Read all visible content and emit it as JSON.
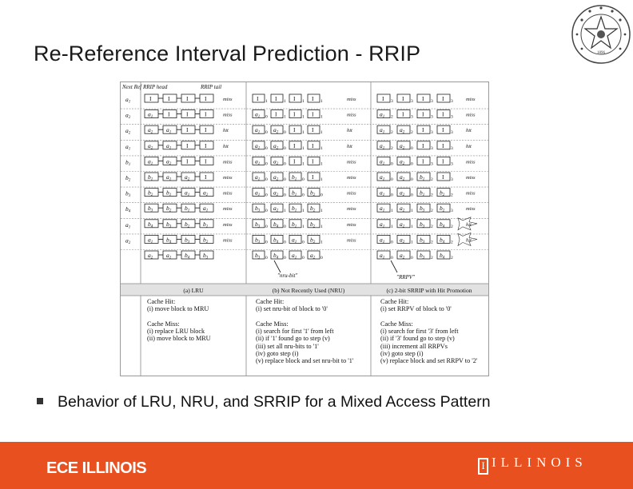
{
  "slide": {
    "title": "Re-Reference Interval Prediction - RRIP",
    "bullet": "Behavior of LRU, NRU, and SRRIP for a Mixed Access Pattern"
  },
  "footer": {
    "left": "ECE ILLINOIS",
    "right": "ILLINOIS",
    "color": "#e8501f"
  },
  "seal": {
    "icon": "university-seal-icon",
    "text": "1896"
  },
  "figure": {
    "header": {
      "next_ref": "Next Ref",
      "rrip_head": "RRIP head",
      "rrip_tail": "RRIP tail"
    },
    "next_refs": [
      "a1",
      "a2",
      "a2",
      "a1",
      "b1",
      "b2",
      "b3",
      "b4",
      "a1",
      "a2",
      ""
    ],
    "lru": {
      "rows": [
        {
          "blocks": [
            "I",
            "I",
            "I",
            "I"
          ],
          "result": "miss"
        },
        {
          "blocks": [
            "a1",
            "I",
            "I",
            "I"
          ],
          "result": "miss"
        },
        {
          "blocks": [
            "a2",
            "a1",
            "I",
            "I"
          ],
          "result": "hit"
        },
        {
          "blocks": [
            "a2",
            "a1",
            "I",
            "I"
          ],
          "result": "hit"
        },
        {
          "blocks": [
            "a1",
            "a2",
            "I",
            "I"
          ],
          "result": "miss"
        },
        {
          "blocks": [
            "b1",
            "a1",
            "a2",
            "I"
          ],
          "result": "miss"
        },
        {
          "blocks": [
            "b2",
            "b1",
            "a1",
            "a2"
          ],
          "result": "miss"
        },
        {
          "blocks": [
            "b3",
            "b2",
            "b1",
            "a1"
          ],
          "result": "miss"
        },
        {
          "blocks": [
            "b4",
            "b3",
            "b2",
            "b1"
          ],
          "result": "miss"
        },
        {
          "blocks": [
            "a1",
            "b4",
            "b3",
            "b2"
          ],
          "result": "miss"
        },
        {
          "blocks": [
            "a2",
            "a1",
            "b4",
            "b3"
          ],
          "result": ""
        }
      ],
      "caption": "(a) LRU"
    },
    "nru": {
      "rows": [
        {
          "blocks": [
            "I",
            "I",
            "I",
            "I"
          ],
          "bits": [
            "1",
            "1",
            "1",
            "1"
          ],
          "result": "miss"
        },
        {
          "blocks": [
            "a1",
            "I",
            "I",
            "I"
          ],
          "bits": [
            "0",
            "1",
            "1",
            "1"
          ],
          "result": "miss"
        },
        {
          "blocks": [
            "a1",
            "a2",
            "I",
            "I"
          ],
          "bits": [
            "0",
            "0",
            "1",
            "1"
          ],
          "result": "hit"
        },
        {
          "blocks": [
            "a1",
            "a2",
            "I",
            "I"
          ],
          "bits": [
            "0",
            "0",
            "1",
            "1"
          ],
          "result": "hit"
        },
        {
          "blocks": [
            "a1",
            "a2",
            "I",
            "I"
          ],
          "bits": [
            "0",
            "0",
            "1",
            "1"
          ],
          "result": "miss"
        },
        {
          "blocks": [
            "a1",
            "a2",
            "b1",
            "I"
          ],
          "bits": [
            "0",
            "0",
            "0",
            "1"
          ],
          "result": "miss"
        },
        {
          "blocks": [
            "a1",
            "a2",
            "b1",
            "b2"
          ],
          "bits": [
            "0",
            "0",
            "0",
            "0"
          ],
          "result": "miss"
        },
        {
          "blocks": [
            "b3",
            "a2",
            "b1",
            "b2"
          ],
          "bits": [
            "0",
            "1",
            "1",
            "1"
          ],
          "result": "miss"
        },
        {
          "blocks": [
            "b3",
            "b4",
            "b1",
            "b2"
          ],
          "bits": [
            "0",
            "0",
            "1",
            "1"
          ],
          "result": "miss"
        },
        {
          "blocks": [
            "b3",
            "b4",
            "a1",
            "b2"
          ],
          "bits": [
            "0",
            "0",
            "0",
            "1"
          ],
          "result": "miss"
        },
        {
          "blocks": [
            "b3",
            "b4",
            "a1",
            "a2"
          ],
          "bits": [
            "0",
            "0",
            "0",
            "0"
          ],
          "result": ""
        }
      ],
      "annotation": "\"nru-bit\"",
      "caption": "(b) Not Recently Used (NRU)"
    },
    "srrip": {
      "rows": [
        {
          "blocks": [
            "I",
            "I",
            "I",
            "I"
          ],
          "bits": [
            "3",
            "3",
            "3",
            "3"
          ],
          "result": "miss"
        },
        {
          "blocks": [
            "a1",
            "I",
            "I",
            "I"
          ],
          "bits": [
            "2",
            "3",
            "3",
            "3"
          ],
          "result": "miss"
        },
        {
          "blocks": [
            "a1",
            "a2",
            "I",
            "I"
          ],
          "bits": [
            "2",
            "2",
            "3",
            "3"
          ],
          "result": "hit"
        },
        {
          "blocks": [
            "a1",
            "a2",
            "I",
            "I"
          ],
          "bits": [
            "2",
            "0",
            "3",
            "3"
          ],
          "result": "hit"
        },
        {
          "blocks": [
            "a1",
            "a2",
            "I",
            "I"
          ],
          "bits": [
            "0",
            "0",
            "3",
            "3"
          ],
          "result": "miss"
        },
        {
          "blocks": [
            "a1",
            "a2",
            "b1",
            "I"
          ],
          "bits": [
            "0",
            "0",
            "2",
            "3"
          ],
          "result": "miss"
        },
        {
          "blocks": [
            "a1",
            "a2",
            "b1",
            "b2"
          ],
          "bits": [
            "0",
            "0",
            "2",
            "2"
          ],
          "result": "miss"
        },
        {
          "blocks": [
            "a1",
            "a2",
            "b3",
            "b2"
          ],
          "bits": [
            "1",
            "1",
            "2",
            "3"
          ],
          "result": "miss"
        },
        {
          "blocks": [
            "a1",
            "a2",
            "b3",
            "b4"
          ],
          "bits": [
            "1",
            "1",
            "2",
            "2"
          ],
          "result": "hit"
        },
        {
          "blocks": [
            "a1",
            "a2",
            "b3",
            "b4"
          ],
          "bits": [
            "0",
            "1",
            "2",
            "2"
          ],
          "result": "hit"
        },
        {
          "blocks": [
            "a1",
            "a2",
            "b3",
            "b4"
          ],
          "bits": [
            "0",
            "0",
            "2",
            "2"
          ],
          "result": ""
        }
      ],
      "annotation": "\"RRPV\"",
      "caption": "(c) 2-bit SRRIP with Hit Promotion"
    },
    "notes": {
      "lru": [
        "Cache Hit:",
        "(i) move block to MRU",
        "",
        "Cache Miss:",
        "(i) replace LRU block",
        "(ii) move block to MRU"
      ],
      "nru": [
        "Cache Hit:",
        "(i) set nru-bit of block to '0'",
        "",
        "Cache Miss:",
        "(i) search for first '1' from left",
        "(ii) if '1' found go to step (v)",
        "(iii) set all nru-bits to '1'",
        "(iv) goto step (i)",
        "(v) replace block and set nru-bit to '1'"
      ],
      "srrip": [
        "Cache Hit:",
        "(i) set RRPV of block to '0'",
        "",
        "Cache Miss:",
        "(i) search for first '3' from left",
        "(ii) if '3' found go to step (v)",
        "(iii) increment all RRPVs",
        "(iv) goto step (i)",
        "(v) replace block and set RRPV to '2'"
      ]
    }
  }
}
